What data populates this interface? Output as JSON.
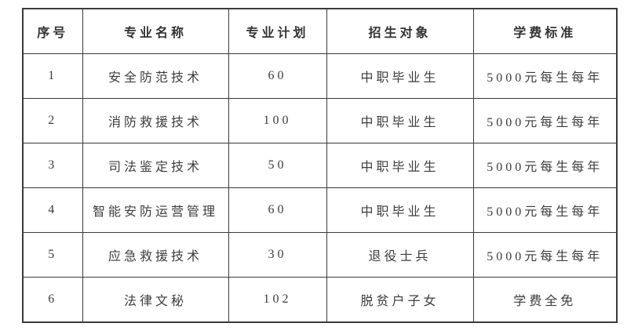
{
  "table": {
    "columns": [
      "序号",
      "专业名称",
      "专业计划",
      "招生对象",
      "学费标准"
    ],
    "rows": [
      [
        "1",
        "安全防范技术",
        "60",
        "中职毕业生",
        "5000元每生每年"
      ],
      [
        "2",
        "消防救援技术",
        "100",
        "中职毕业生",
        "5000元每生每年"
      ],
      [
        "3",
        "司法鉴定技术",
        "50",
        "中职毕业生",
        "5000元每生每年"
      ],
      [
        "4",
        "智能安防运营管理",
        "60",
        "中职毕业生",
        "5000元每生每年"
      ],
      [
        "5",
        "应急救援技术",
        "30",
        "退役士兵",
        "5000元每生每年"
      ],
      [
        "6",
        "法律文秘",
        "102",
        "脱贫户子女",
        "学费全免"
      ]
    ],
    "colors": {
      "border": "#3a3a3a",
      "text": "#3d3d3d",
      "background": "#ffffff"
    }
  }
}
